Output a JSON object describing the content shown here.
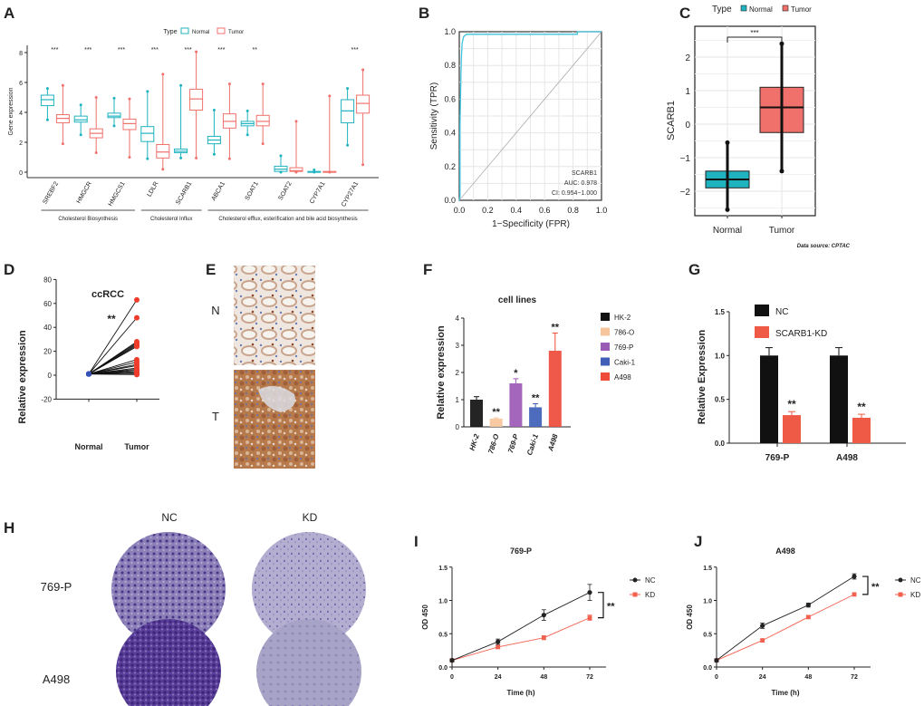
{
  "panel_labels": [
    "A",
    "B",
    "C",
    "D",
    "E",
    "F",
    "G",
    "H",
    "I",
    "J"
  ],
  "chart_data": [
    {
      "id": "A",
      "type": "box",
      "ylabel": "Gene expression",
      "ylim": [
        0,
        8
      ],
      "yticks": [
        0,
        2,
        4,
        6,
        8
      ],
      "legend": {
        "title": "Type",
        "entries": [
          "Normal",
          "Tumor"
        ],
        "colors": [
          "#1fb3bf",
          "#f0716b"
        ],
        "placement": "top"
      },
      "categories": [
        "SREBF2",
        "HMGCR",
        "HMGCS1",
        "LDLR",
        "SCARB1",
        "ABCA1",
        "SOAT1",
        "SOAT2",
        "CYP7A1",
        "CYP27A1"
      ],
      "significance": [
        "***",
        "***",
        "***",
        "***",
        "***",
        "***",
        "**",
        "",
        "",
        "***"
      ],
      "normal": [
        [
          3.5,
          4.45,
          4.85,
          5.15,
          5.6
        ],
        [
          2.5,
          3.35,
          3.5,
          3.75,
          4.5
        ],
        [
          3.1,
          3.65,
          3.75,
          3.95,
          4.95
        ],
        [
          0.9,
          2.05,
          2.6,
          3.05,
          5.4
        ],
        [
          0.95,
          1.3,
          1.4,
          1.55,
          5.8
        ],
        [
          1.2,
          1.9,
          2.15,
          2.4,
          4.15
        ],
        [
          2.5,
          3.1,
          3.25,
          3.4,
          4.1
        ],
        [
          0,
          0.05,
          0.2,
          0.4,
          1.1
        ],
        [
          0,
          0,
          0.02,
          0.05,
          0.15
        ],
        [
          1.8,
          3.3,
          4.1,
          4.85,
          5.6
        ]
      ],
      "tumor": [
        [
          1.9,
          3.3,
          3.6,
          3.85,
          5.8
        ],
        [
          1.3,
          2.3,
          2.6,
          2.9,
          5.0
        ],
        [
          1.0,
          2.85,
          3.25,
          3.55,
          4.9
        ],
        [
          0.2,
          0.95,
          1.35,
          1.85,
          6.55
        ],
        [
          0.95,
          4.15,
          4.9,
          5.55,
          8.05
        ],
        [
          0.9,
          2.95,
          3.4,
          3.9,
          5.9
        ],
        [
          1.9,
          3.1,
          3.4,
          3.8,
          5.9
        ],
        [
          0,
          0.05,
          0.1,
          0.3,
          3.4
        ],
        [
          0,
          0,
          0.03,
          0.05,
          5.1
        ],
        [
          0.5,
          3.95,
          4.6,
          5.15,
          6.85
        ]
      ],
      "groups": [
        {
          "label": "Cholesterol Biosynthesis",
          "from": 0,
          "to": 2
        },
        {
          "label": "Cholesterol Influx",
          "from": 3,
          "to": 4
        },
        {
          "label": "Cholesterol efflux, esterification and bile acid biosynthesis",
          "from": 5,
          "to": 9
        }
      ]
    },
    {
      "id": "B",
      "type": "line",
      "xlabel": "1−Specificity (FPR)",
      "ylabel": "Sensitivity (TPR)",
      "xlim": [
        0,
        1
      ],
      "ylim": [
        0,
        1
      ],
      "ticks": [
        "0.0",
        "0.2",
        "0.4",
        "0.6",
        "0.8",
        "1.0"
      ],
      "roc": [
        [
          0,
          0
        ],
        [
          0.005,
          0.02
        ],
        [
          0.005,
          0.45
        ],
        [
          0.012,
          0.75
        ],
        [
          0.015,
          0.85
        ],
        [
          0.02,
          0.93
        ],
        [
          0.03,
          0.97
        ],
        [
          0.05,
          0.985
        ],
        [
          0.83,
          0.985
        ],
        [
          0.83,
          1
        ],
        [
          1,
          1
        ]
      ],
      "annotation": [
        "SCARB1",
        "AUC: 0.978",
        "CI: 0.954−1.000"
      ],
      "line_color": "#3ec3dd"
    },
    {
      "id": "C",
      "type": "box",
      "ylabel": "SCARB1",
      "ylim": [
        -2.7,
        2.7
      ],
      "yticks": [
        -2,
        -1,
        0,
        1,
        2
      ],
      "ytick_labels": [
        "−2",
        "−1",
        "0",
        "1",
        "2"
      ],
      "legend": {
        "title": "Type",
        "entries": [
          "Normal",
          "Tumor"
        ],
        "colors": [
          "#1fb3bf",
          "#f0716b"
        ],
        "placement": "top"
      },
      "categories": [
        "Normal",
        "Tumor"
      ],
      "boxes": [
        [
          -2.55,
          -1.9,
          -1.65,
          -1.4,
          -0.55
        ],
        [
          -1.4,
          -0.25,
          0.5,
          1.1,
          2.4
        ]
      ],
      "significance": "***",
      "source": "Data source: CPTAC"
    },
    {
      "id": "D",
      "type": "scatter",
      "title": "ccRCC",
      "ylabel": "Relative expression",
      "ylim": [
        -20,
        80
      ],
      "yticks": [
        -20,
        0,
        20,
        40,
        60,
        80
      ],
      "categories": [
        "Normal",
        "Tumor"
      ],
      "significance": "**",
      "normal": [
        1,
        1,
        1,
        1,
        1,
        1,
        1,
        1,
        1,
        1,
        1,
        1,
        1,
        1,
        1,
        1,
        1,
        1
      ],
      "tumor": [
        63,
        48,
        28,
        27,
        26,
        25,
        24,
        13,
        11,
        9,
        8,
        6,
        5,
        4,
        3,
        2,
        1,
        0.5
      ]
    },
    {
      "id": "E",
      "type": "image",
      "row_labels": [
        "N",
        "T"
      ]
    },
    {
      "id": "F",
      "type": "bar",
      "title": "cell lines",
      "ylabel": "Relative expression",
      "ylim": [
        0,
        4
      ],
      "yticks": [
        0,
        1,
        2,
        3,
        4
      ],
      "categories": [
        "HK-2",
        "786-O",
        "769-P",
        "Caki-1",
        "A498"
      ],
      "values": [
        1.0,
        0.3,
        1.6,
        0.72,
        2.8
      ],
      "errors": [
        0.11,
        0.03,
        0.17,
        0.13,
        0.65
      ],
      "significance": [
        "",
        "**",
        "*",
        "**",
        "**"
      ],
      "colors": [
        "#111111",
        "#f7c59b",
        "#9b59b6",
        "#3f5fb8",
        "#ee4b3b"
      ],
      "legend_placement": "right"
    },
    {
      "id": "G",
      "type": "bar",
      "ylabel": "Relative Expression",
      "ylim": [
        0,
        1.5
      ],
      "yticks": [
        "0.0",
        "0.5",
        "1.0",
        "1.5"
      ],
      "categories": [
        "769-P",
        "A498"
      ],
      "series": [
        {
          "name": "NC",
          "values": [
            1.0,
            1.0
          ],
          "errors": [
            0.09,
            0.09
          ],
          "color": "#111111"
        },
        {
          "name": "SCARB1-KD",
          "values": [
            0.32,
            0.29
          ],
          "errors": [
            0.04,
            0.04
          ],
          "color": "#ee5a45"
        }
      ],
      "significance": [
        "**",
        "**"
      ],
      "legend_placement": "top-left"
    },
    {
      "id": "H",
      "type": "image",
      "column_labels": [
        "NC",
        "KD"
      ],
      "row_labels": [
        "769-P",
        "A498"
      ]
    },
    {
      "id": "I",
      "type": "line",
      "title": "769-P",
      "xlabel": "Time (h)",
      "ylabel": "OD 450",
      "x": [
        0,
        24,
        48,
        72
      ],
      "ylim": [
        0,
        1.5
      ],
      "yticks": [
        "0.0",
        "0.5",
        "1.0",
        "1.5"
      ],
      "series": [
        {
          "name": "NC",
          "values": [
            0.1,
            0.38,
            0.78,
            1.12
          ],
          "errors": [
            0.02,
            0.04,
            0.08,
            0.12
          ],
          "color": "#222222"
        },
        {
          "name": "KD",
          "values": [
            0.1,
            0.3,
            0.44,
            0.74
          ],
          "errors": [
            0.02,
            0.02,
            0.03,
            0.04
          ],
          "color": "#f2604f"
        }
      ],
      "significance": "**",
      "legend_placement": "right"
    },
    {
      "id": "J",
      "type": "line",
      "title": "A498",
      "xlabel": "Time (h)",
      "ylabel": "OD 450",
      "x": [
        0,
        24,
        48,
        72
      ],
      "ylim": [
        0,
        1.5
      ],
      "yticks": [
        "0.0",
        "0.5",
        "1.0",
        "1.5"
      ],
      "series": [
        {
          "name": "NC",
          "values": [
            0.1,
            0.62,
            0.93,
            1.36
          ],
          "errors": [
            0.02,
            0.04,
            0.03,
            0.04
          ],
          "color": "#222222"
        },
        {
          "name": "KD",
          "values": [
            0.1,
            0.4,
            0.75,
            1.09
          ],
          "errors": [
            0.02,
            0.02,
            0.02,
            0.02
          ],
          "color": "#f2604f"
        }
      ],
      "significance": "**",
      "legend_placement": "right"
    }
  ]
}
